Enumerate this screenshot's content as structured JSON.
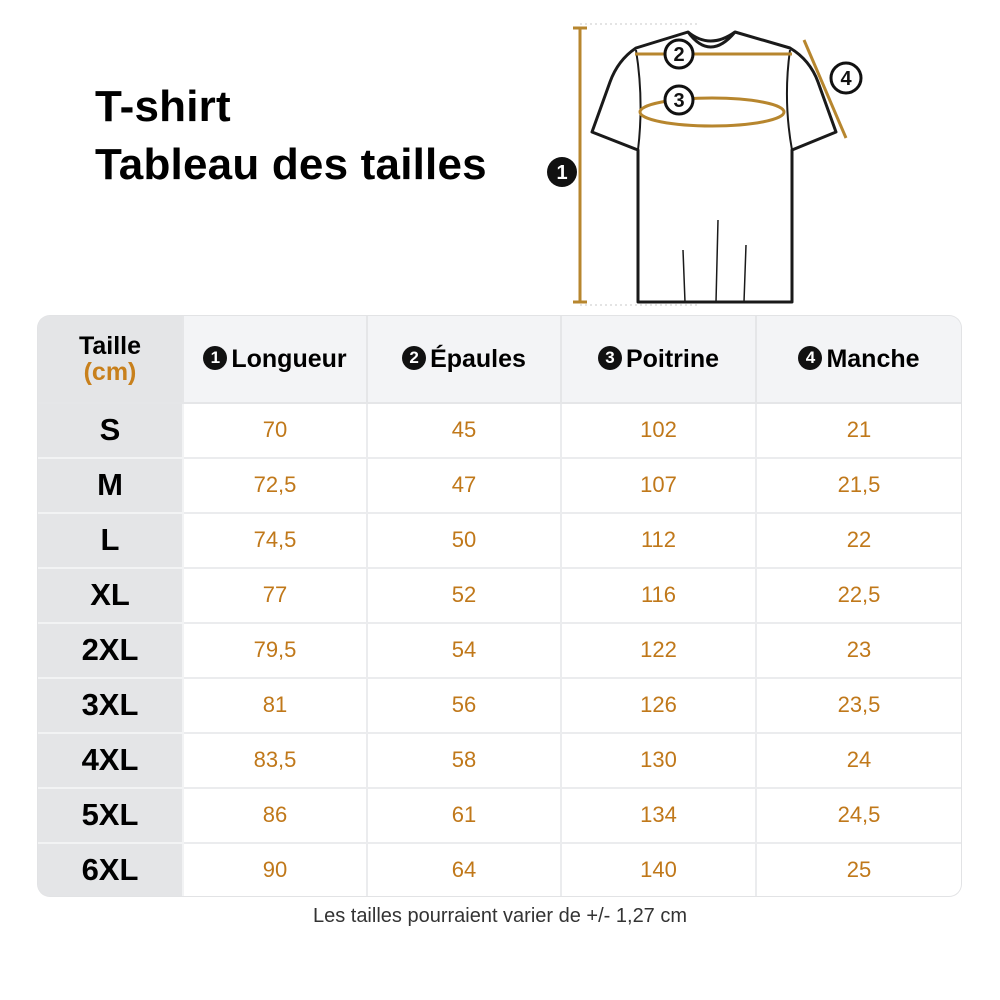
{
  "title": {
    "line1": "T-shirt",
    "line2": "Tableau des tailles"
  },
  "diagram": {
    "markers": [
      "1",
      "2",
      "3",
      "4"
    ],
    "line_color": "#b7862e"
  },
  "table": {
    "size_header": {
      "label": "Taille",
      "unit": "(cm)"
    },
    "columns": [
      {
        "num": "1",
        "label": "Longueur"
      },
      {
        "num": "2",
        "label": "Épaules"
      },
      {
        "num": "3",
        "label": "Poitrine"
      },
      {
        "num": "4",
        "label": "Manche"
      }
    ],
    "rows": [
      {
        "size": "S",
        "values": [
          "70",
          "45",
          "102",
          "21"
        ]
      },
      {
        "size": "M",
        "values": [
          "72,5",
          "47",
          "107",
          "21,5"
        ]
      },
      {
        "size": "L",
        "values": [
          "74,5",
          "50",
          "112",
          "22"
        ]
      },
      {
        "size": "XL",
        "values": [
          "77",
          "52",
          "116",
          "22,5"
        ]
      },
      {
        "size": "2XL",
        "values": [
          "79,5",
          "54",
          "122",
          "23"
        ]
      },
      {
        "size": "3XL",
        "values": [
          "81",
          "56",
          "126",
          "23,5"
        ]
      },
      {
        "size": "4XL",
        "values": [
          "83,5",
          "58",
          "130",
          "24"
        ]
      },
      {
        "size": "5XL",
        "values": [
          "86",
          "61",
          "134",
          "24,5"
        ]
      },
      {
        "size": "6XL",
        "values": [
          "90",
          "64",
          "140",
          "25"
        ]
      }
    ],
    "value_color": "#c0781a",
    "unit_color": "#c8801c"
  },
  "footnote": "Les tailles pourraient varier de +/- 1,27 cm"
}
